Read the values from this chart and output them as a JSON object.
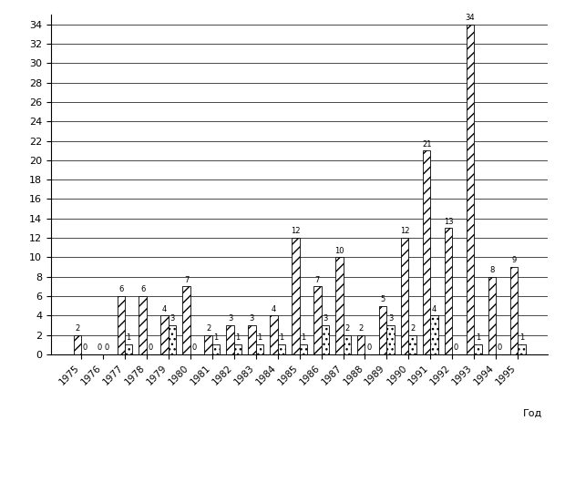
{
  "years": [
    1975,
    1976,
    1977,
    1978,
    1979,
    1980,
    1981,
    1982,
    1983,
    1984,
    1985,
    1986,
    1987,
    1988,
    1989,
    1990,
    1991,
    1992,
    1993,
    1994,
    1995
  ],
  "series1": [
    2,
    0,
    6,
    6,
    4,
    7,
    2,
    3,
    3,
    4,
    12,
    7,
    10,
    2,
    5,
    12,
    21,
    13,
    34,
    8,
    9
  ],
  "series2": [
    0,
    0,
    1,
    0,
    3,
    0,
    1,
    1,
    1,
    1,
    1,
    3,
    2,
    0,
    3,
    2,
    4,
    0,
    1,
    0,
    1
  ],
  "год_label": "Год",
  "ylim": [
    0,
    35
  ],
  "yticks": [
    0,
    2,
    4,
    6,
    8,
    10,
    12,
    14,
    16,
    18,
    20,
    22,
    24,
    26,
    28,
    30,
    32,
    34
  ],
  "background_color": "#ffffff",
  "series1_hatch": "///",
  "series2_hatch": "...",
  "bar_width": 0.35,
  "figsize": [
    6.2,
    5.4
  ],
  "dpi": 100
}
